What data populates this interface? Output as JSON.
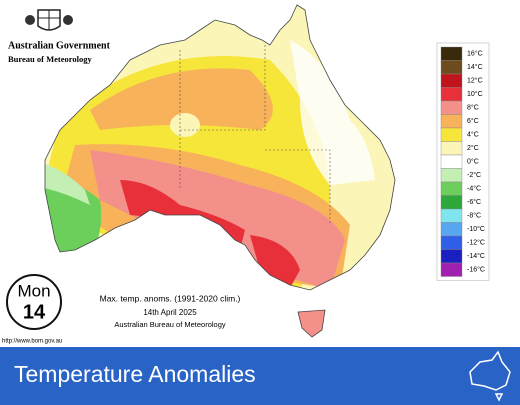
{
  "header": {
    "government": "Australian Government",
    "bureau": "Bureau of Meteorology"
  },
  "legend": {
    "items": [
      {
        "label": "16°C",
        "color": "#3a2a0c"
      },
      {
        "label": "14°C",
        "color": "#6e4b1c"
      },
      {
        "label": "12°C",
        "color": "#c0141c"
      },
      {
        "label": "10°C",
        "color": "#e8303a"
      },
      {
        "label": "8°C",
        "color": "#f4908a"
      },
      {
        "label": "6°C",
        "color": "#f7b25a"
      },
      {
        "label": "4°C",
        "color": "#f6e63a"
      },
      {
        "label": "2°C",
        "color": "#fbf6b8"
      },
      {
        "label": "0°C",
        "color": "#ffffff"
      },
      {
        "label": "-2°C",
        "color": "#c4efb4"
      },
      {
        "label": "-4°C",
        "color": "#6ccf5c"
      },
      {
        "label": "-6°C",
        "color": "#2ea83a"
      },
      {
        "label": "-8°C",
        "color": "#7fe6ee"
      },
      {
        "label": "-10°C",
        "color": "#58a6f0"
      },
      {
        "label": "-12°C",
        "color": "#2f5ee8"
      },
      {
        "label": "-14°C",
        "color": "#1a20c0"
      },
      {
        "label": "-16°C",
        "color": "#a020b0"
      }
    ]
  },
  "badge": {
    "day": "Mon",
    "date": "14"
  },
  "caption": {
    "line1": "Max. temp. anoms. (1991-2020 clim.)",
    "line2": "14th April 2025",
    "line3": "Australian Bureau of Meteorology"
  },
  "url": "http://www.bom.gov.au",
  "banner": {
    "title": "Temperature Anomalies"
  }
}
